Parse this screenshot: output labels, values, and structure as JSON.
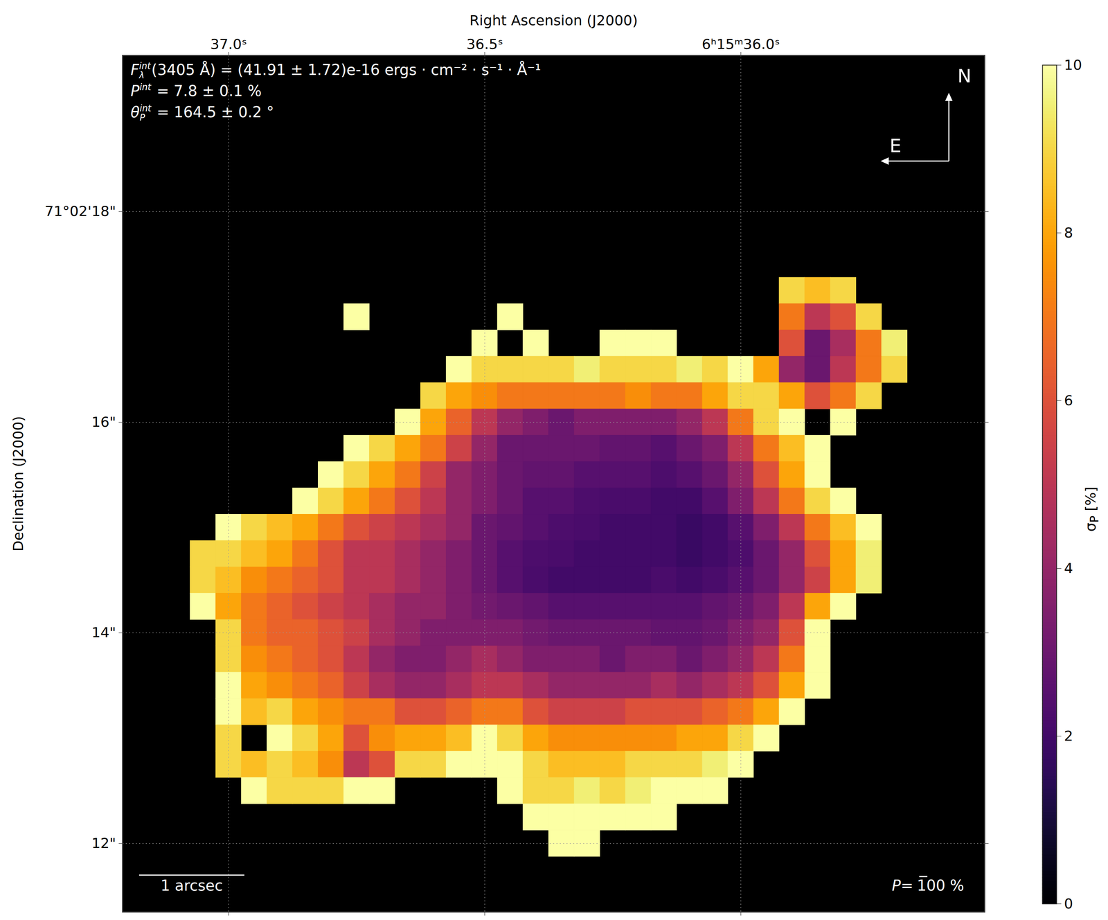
{
  "chart_data": {
    "type": "heatmap",
    "x_label": "Right Ascension (J2000)",
    "y_label": "Declination (J2000)",
    "color": "inferno",
    "grid": true,
    "xlim": [
      37.207,
      35.524
    ],
    "ylim": [
      11.349,
      19.483
    ],
    "xticks": [
      {
        "value": 37.0,
        "label": "37.0ˢ"
      },
      {
        "value": 36.5,
        "label": "36.5ˢ"
      },
      {
        "value": 36.0,
        "label": "6ʰ15ᵐ36.0ˢ"
      }
    ],
    "yticks": [
      {
        "value": 18,
        "label": "71°02'18\""
      },
      {
        "value": 16,
        "label": "16\""
      },
      {
        "value": 14,
        "label": "14\""
      },
      {
        "value": 12,
        "label": "12\""
      }
    ],
    "x": [
      37.05,
      37.0,
      36.95,
      36.9,
      36.85,
      36.8,
      36.75,
      36.7,
      36.65,
      36.6,
      36.55,
      36.5,
      36.45,
      36.4,
      36.35,
      36.3,
      36.25,
      36.2,
      36.15,
      36.1,
      36.05,
      36.0,
      35.95,
      35.9,
      35.85,
      35.8,
      35.75,
      35.7
    ],
    "y": [
      17.25,
      17.0,
      16.75,
      16.5,
      16.25,
      16.0,
      15.75,
      15.5,
      15.25,
      15.0,
      14.75,
      14.5,
      14.25,
      14.0,
      13.75,
      13.5,
      13.25,
      13.0,
      12.75,
      12.5,
      12.25,
      12.0
    ],
    "values": [
      [
        null,
        null,
        null,
        null,
        null,
        null,
        null,
        null,
        null,
        null,
        null,
        null,
        null,
        null,
        null,
        null,
        null,
        null,
        null,
        null,
        null,
        null,
        null,
        9,
        8.5,
        9,
        null,
        null
      ],
      [
        null,
        null,
        null,
        null,
        null,
        null,
        10,
        null,
        null,
        null,
        null,
        null,
        10,
        null,
        null,
        null,
        null,
        null,
        null,
        null,
        null,
        null,
        null,
        7,
        5,
        6,
        9,
        null
      ],
      [
        null,
        null,
        null,
        null,
        null,
        null,
        null,
        null,
        null,
        null,
        null,
        10,
        null,
        10,
        null,
        null,
        10,
        10,
        10,
        null,
        null,
        null,
        null,
        6,
        3,
        4.5,
        7,
        9.5
      ],
      [
        null,
        null,
        null,
        null,
        null,
        null,
        null,
        null,
        null,
        null,
        10,
        9,
        9,
        9,
        9,
        9.5,
        9,
        9,
        9,
        9.5,
        9,
        10,
        8,
        4,
        3,
        5,
        7,
        9
      ],
      [
        null,
        null,
        null,
        null,
        null,
        null,
        null,
        null,
        null,
        9,
        8,
        7.5,
        7,
        7,
        7,
        7,
        7,
        7.5,
        7,
        7,
        8,
        9,
        9,
        8,
        6,
        7,
        9,
        null
      ],
      [
        null,
        null,
        null,
        null,
        null,
        null,
        null,
        null,
        10,
        8,
        6.5,
        5,
        4,
        3.5,
        3,
        3.5,
        3.5,
        3.5,
        3.5,
        4,
        5,
        7,
        9,
        10,
        null,
        10,
        null,
        null
      ],
      [
        null,
        null,
        null,
        null,
        null,
        null,
        10,
        9,
        8,
        7,
        5.5,
        4,
        3,
        3,
        3,
        3,
        2.8,
        2.8,
        2.5,
        3,
        3.5,
        5,
        7,
        8.5,
        10,
        null,
        null,
        null
      ],
      [
        null,
        null,
        null,
        null,
        null,
        10,
        9,
        8,
        7,
        5.5,
        4,
        3.5,
        3,
        2.8,
        2.8,
        2.5,
        2.5,
        2.5,
        2.3,
        2.5,
        3,
        4,
        6,
        8,
        10,
        null,
        null,
        null
      ],
      [
        null,
        null,
        null,
        null,
        10,
        9,
        8,
        7,
        6,
        5,
        4,
        3.5,
        3,
        2.5,
        2.5,
        2.3,
        2.2,
        2.2,
        2,
        2,
        2.5,
        3.5,
        5,
        7,
        9,
        10,
        null,
        null
      ],
      [
        null,
        10,
        9,
        8.5,
        8,
        7,
        6,
        5.5,
        5,
        4.5,
        4,
        3,
        2.8,
        2.5,
        2.3,
        2.2,
        2,
        2,
        2,
        1.8,
        2,
        2.5,
        3.5,
        5,
        7,
        8.5,
        10,
        null
      ],
      [
        9,
        9,
        8.5,
        8,
        7,
        6,
        5,
        5,
        4.5,
        4,
        3.5,
        3,
        2.5,
        2.3,
        2.2,
        2,
        2,
        2,
        2,
        1.8,
        2,
        2.3,
        3,
        4,
        6,
        8,
        9.5,
        null
      ],
      [
        9,
        8.5,
        7.5,
        7,
        6.5,
        6,
        5,
        5,
        4.5,
        4,
        3.5,
        3,
        2.5,
        2.2,
        2,
        2,
        2,
        2,
        2.2,
        2,
        2.2,
        2.5,
        3,
        4,
        5.5,
        8,
        9.5,
        null
      ],
      [
        10,
        8,
        7,
        6.5,
        6,
        5.5,
        5,
        4.5,
        4,
        4,
        3.5,
        3.2,
        3,
        2.8,
        2.5,
        2.5,
        2.5,
        2.5,
        2.5,
        2.5,
        2.8,
        3,
        3.5,
        5,
        8,
        10,
        null,
        null
      ],
      [
        null,
        9,
        7,
        6.5,
        6.5,
        6,
        5.5,
        4.5,
        4,
        3.5,
        3.5,
        3.5,
        3.5,
        3.2,
        3,
        3,
        3,
        3,
        2.8,
        2.8,
        3,
        3.5,
        4,
        6,
        10,
        null,
        null,
        null
      ],
      [
        null,
        9,
        7.5,
        7,
        6.5,
        6,
        5,
        4,
        3.5,
        3.5,
        4,
        4.5,
        4,
        3.5,
        3.5,
        3.5,
        3,
        3.5,
        3.5,
        3,
        3.5,
        4,
        5,
        7,
        10,
        null,
        null,
        null
      ],
      [
        null,
        10,
        8,
        7.5,
        7,
        6.5,
        5.5,
        4.5,
        4,
        4,
        4.5,
        5,
        5,
        4.5,
        4,
        4,
        4,
        4,
        4.5,
        4,
        4.5,
        5,
        6,
        8,
        10,
        null,
        null,
        null
      ],
      [
        null,
        10,
        8.5,
        9,
        8,
        7.5,
        7,
        7,
        6,
        6,
        6.5,
        7,
        7,
        6,
        5.5,
        5.5,
        5.5,
        6,
        6,
        6,
        6.5,
        7,
        8,
        10,
        null,
        null,
        null,
        null
      ],
      [
        null,
        9,
        null,
        10,
        9,
        8,
        6,
        7.5,
        8,
        8,
        8.5,
        10,
        9,
        8,
        7.5,
        7.5,
        7.5,
        7.5,
        7.5,
        8,
        8,
        9,
        10,
        null,
        null,
        null,
        null,
        null
      ],
      [
        null,
        9,
        8.5,
        9,
        8.5,
        7.5,
        5,
        6,
        9,
        9,
        10,
        10,
        10,
        9,
        8.5,
        8.5,
        8.5,
        9,
        9,
        9,
        9.5,
        10,
        null,
        null,
        null,
        null,
        null,
        null
      ],
      [
        null,
        null,
        10,
        9,
        9,
        9,
        10,
        10,
        null,
        null,
        null,
        null,
        10,
        9,
        9,
        9.5,
        9,
        9.5,
        10,
        10,
        10,
        null,
        null,
        null,
        null,
        null,
        null,
        null
      ],
      [
        null,
        null,
        null,
        null,
        null,
        null,
        null,
        null,
        null,
        null,
        null,
        null,
        null,
        10,
        10,
        10,
        10,
        10,
        10,
        null,
        null,
        null,
        null,
        null,
        null,
        null,
        null,
        null
      ],
      [
        null,
        null,
        null,
        null,
        null,
        null,
        null,
        null,
        null,
        null,
        null,
        null,
        null,
        null,
        10,
        10,
        null,
        null,
        null,
        null,
        null,
        null,
        null,
        null,
        null,
        null,
        null,
        null
      ]
    ],
    "colorbar": {
      "range": [
        0,
        10
      ],
      "ticks": [
        0,
        2,
        4,
        6,
        8,
        10
      ],
      "label": {
        "symbol": "σ",
        "sub": "P",
        "rest": " [%]"
      }
    },
    "annotations": [
      {
        "symbol": "F",
        "sub": "λ",
        "sup": "int",
        "rest": "(3405 Å) = (41.91 ± 1.72)e-16 ergs · cm⁻² · s⁻¹ · Å⁻¹"
      },
      {
        "symbol": "P",
        "sub": "",
        "sup": "int",
        "rest": " = 7.8 ± 0.1 %"
      },
      {
        "symbol": "θ",
        "sub": "P",
        "sup": "int",
        "rest": " = 164.5 ± 0.2 °"
      }
    ],
    "compass": {
      "north": "N",
      "east": "E"
    },
    "scale_bar": {
      "length": 1,
      "label": "1 arcsec"
    },
    "vector_legend": {
      "before": "P=",
      "after": "100 %"
    }
  }
}
